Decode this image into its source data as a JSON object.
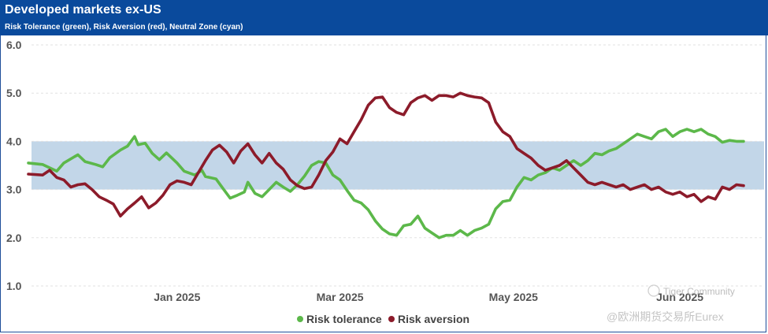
{
  "header": {
    "title": "Developed markets ex-US",
    "subtitle": "Risk Tolerance (green), Risk Aversion (red), Neutral Zone (cyan)"
  },
  "colors": {
    "header_bg": "#0a4a9c",
    "tolerance": "#5cb84a",
    "aversion": "#8c1b2a",
    "neutral": "#c2d6e8"
  },
  "watermark": {
    "community": "Tiger Community",
    "author": "@欧洲期货交易所Eurex"
  },
  "chart_data": {
    "type": "line",
    "title": "Developed markets ex-US",
    "subtitle": "Risk Tolerance (green), Risk Aversion (red), Neutral Zone (cyan)",
    "ylim": [
      1.0,
      6.0
    ],
    "yticks": [
      "1.0",
      "2.0",
      "3.0",
      "4.0",
      "5.0",
      "6.0"
    ],
    "xlim": [
      0,
      202
    ],
    "xticks": [
      {
        "label": "Jan 2025",
        "x": 42
      },
      {
        "label": "Mar 2025",
        "x": 88
      },
      {
        "label": "May 2025",
        "x": 137
      },
      {
        "label": "Jun 2025",
        "x": 184
      }
    ],
    "neutral_zone": [
      3.0,
      4.0
    ],
    "legend": [
      "Risk tolerance",
      "Risk aversion"
    ],
    "series": [
      {
        "name": "Risk tolerance",
        "points": [
          [
            0,
            3.55
          ],
          [
            4,
            3.52
          ],
          [
            8,
            3.38
          ],
          [
            10,
            3.55
          ],
          [
            13,
            3.68
          ],
          [
            14,
            3.72
          ],
          [
            16,
            3.58
          ],
          [
            19,
            3.52
          ],
          [
            21,
            3.47
          ],
          [
            23,
            3.66
          ],
          [
            26,
            3.82
          ],
          [
            28,
            3.9
          ],
          [
            30,
            4.1
          ],
          [
            31,
            3.93
          ],
          [
            33,
            3.96
          ],
          [
            35,
            3.75
          ],
          [
            37,
            3.62
          ],
          [
            39,
            3.76
          ],
          [
            42,
            3.55
          ],
          [
            44,
            3.38
          ],
          [
            47,
            3.3
          ],
          [
            49,
            3.4
          ],
          [
            50,
            3.27
          ],
          [
            53,
            3.22
          ],
          [
            55,
            3.02
          ],
          [
            57,
            2.82
          ],
          [
            59,
            2.88
          ],
          [
            61,
            2.95
          ],
          [
            62,
            3.15
          ],
          [
            64,
            2.92
          ],
          [
            66,
            2.85
          ],
          [
            68,
            3.0
          ],
          [
            70,
            3.15
          ],
          [
            72,
            3.05
          ],
          [
            74,
            2.96
          ],
          [
            76,
            3.1
          ],
          [
            78,
            3.28
          ],
          [
            80,
            3.5
          ],
          [
            82,
            3.58
          ],
          [
            84,
            3.55
          ],
          [
            86,
            3.3
          ],
          [
            88,
            3.2
          ],
          [
            90,
            2.98
          ],
          [
            92,
            2.78
          ],
          [
            94,
            2.72
          ],
          [
            96,
            2.58
          ],
          [
            98,
            2.35
          ],
          [
            100,
            2.18
          ],
          [
            102,
            2.08
          ],
          [
            104,
            2.05
          ],
          [
            106,
            2.25
          ],
          [
            108,
            2.28
          ],
          [
            110,
            2.45
          ],
          [
            112,
            2.2
          ],
          [
            114,
            2.1
          ],
          [
            116,
            2.0
          ],
          [
            118,
            2.05
          ],
          [
            120,
            2.05
          ],
          [
            122,
            2.15
          ],
          [
            124,
            2.05
          ],
          [
            126,
            2.15
          ],
          [
            128,
            2.2
          ],
          [
            130,
            2.28
          ],
          [
            132,
            2.6
          ],
          [
            134,
            2.75
          ],
          [
            136,
            2.78
          ],
          [
            138,
            3.05
          ],
          [
            140,
            3.25
          ],
          [
            142,
            3.2
          ],
          [
            144,
            3.3
          ],
          [
            146,
            3.35
          ],
          [
            148,
            3.45
          ],
          [
            150,
            3.4
          ],
          [
            152,
            3.5
          ],
          [
            154,
            3.6
          ],
          [
            156,
            3.5
          ],
          [
            158,
            3.6
          ],
          [
            160,
            3.75
          ],
          [
            162,
            3.72
          ],
          [
            164,
            3.8
          ],
          [
            166,
            3.85
          ],
          [
            168,
            3.95
          ],
          [
            170,
            4.05
          ],
          [
            172,
            4.15
          ],
          [
            174,
            4.1
          ],
          [
            176,
            4.05
          ],
          [
            178,
            4.2
          ],
          [
            180,
            4.25
          ],
          [
            182,
            4.1
          ],
          [
            184,
            4.2
          ],
          [
            186,
            4.25
          ],
          [
            188,
            4.2
          ],
          [
            190,
            4.25
          ],
          [
            192,
            4.15
          ],
          [
            194,
            4.1
          ],
          [
            196,
            3.98
          ],
          [
            198,
            4.02
          ],
          [
            200,
            4.0
          ],
          [
            202,
            4.0
          ]
        ]
      },
      {
        "name": "Risk aversion",
        "points": [
          [
            0,
            3.32
          ],
          [
            4,
            3.3
          ],
          [
            6,
            3.4
          ],
          [
            8,
            3.25
          ],
          [
            10,
            3.2
          ],
          [
            12,
            3.05
          ],
          [
            14,
            3.1
          ],
          [
            16,
            3.12
          ],
          [
            18,
            3.0
          ],
          [
            20,
            2.85
          ],
          [
            22,
            2.78
          ],
          [
            24,
            2.7
          ],
          [
            26,
            2.45
          ],
          [
            28,
            2.6
          ],
          [
            30,
            2.72
          ],
          [
            32,
            2.85
          ],
          [
            34,
            2.62
          ],
          [
            36,
            2.72
          ],
          [
            38,
            2.88
          ],
          [
            40,
            3.1
          ],
          [
            42,
            3.18
          ],
          [
            44,
            3.15
          ],
          [
            46,
            3.1
          ],
          [
            48,
            3.35
          ],
          [
            50,
            3.6
          ],
          [
            52,
            3.82
          ],
          [
            54,
            3.92
          ],
          [
            56,
            3.78
          ],
          [
            58,
            3.55
          ],
          [
            60,
            3.8
          ],
          [
            62,
            3.95
          ],
          [
            64,
            3.72
          ],
          [
            66,
            3.55
          ],
          [
            68,
            3.75
          ],
          [
            70,
            3.55
          ],
          [
            72,
            3.42
          ],
          [
            74,
            3.2
          ],
          [
            76,
            3.08
          ],
          [
            78,
            3.02
          ],
          [
            80,
            3.05
          ],
          [
            82,
            3.3
          ],
          [
            84,
            3.6
          ],
          [
            86,
            3.78
          ],
          [
            88,
            4.05
          ],
          [
            90,
            3.95
          ],
          [
            92,
            4.2
          ],
          [
            94,
            4.45
          ],
          [
            96,
            4.75
          ],
          [
            98,
            4.9
          ],
          [
            100,
            4.92
          ],
          [
            102,
            4.7
          ],
          [
            104,
            4.6
          ],
          [
            106,
            4.55
          ],
          [
            108,
            4.8
          ],
          [
            110,
            4.9
          ],
          [
            112,
            4.95
          ],
          [
            114,
            4.85
          ],
          [
            116,
            4.95
          ],
          [
            118,
            4.95
          ],
          [
            120,
            4.92
          ],
          [
            122,
            5.0
          ],
          [
            124,
            4.95
          ],
          [
            126,
            4.92
          ],
          [
            128,
            4.9
          ],
          [
            130,
            4.8
          ],
          [
            132,
            4.4
          ],
          [
            134,
            4.2
          ],
          [
            136,
            4.1
          ],
          [
            138,
            3.85
          ],
          [
            140,
            3.75
          ],
          [
            142,
            3.65
          ],
          [
            144,
            3.5
          ],
          [
            146,
            3.4
          ],
          [
            148,
            3.45
          ],
          [
            150,
            3.5
          ],
          [
            152,
            3.6
          ],
          [
            154,
            3.45
          ],
          [
            156,
            3.3
          ],
          [
            158,
            3.15
          ],
          [
            160,
            3.1
          ],
          [
            162,
            3.15
          ],
          [
            164,
            3.1
          ],
          [
            166,
            3.05
          ],
          [
            168,
            3.1
          ],
          [
            170,
            3.0
          ],
          [
            172,
            3.05
          ],
          [
            174,
            3.1
          ],
          [
            176,
            3.0
          ],
          [
            178,
            3.05
          ],
          [
            180,
            2.95
          ],
          [
            182,
            2.9
          ],
          [
            184,
            2.95
          ],
          [
            186,
            2.85
          ],
          [
            188,
            2.9
          ],
          [
            190,
            2.75
          ],
          [
            192,
            2.85
          ],
          [
            194,
            2.8
          ],
          [
            196,
            3.05
          ],
          [
            198,
            3.0
          ],
          [
            200,
            3.1
          ],
          [
            202,
            3.08
          ]
        ]
      }
    ]
  }
}
